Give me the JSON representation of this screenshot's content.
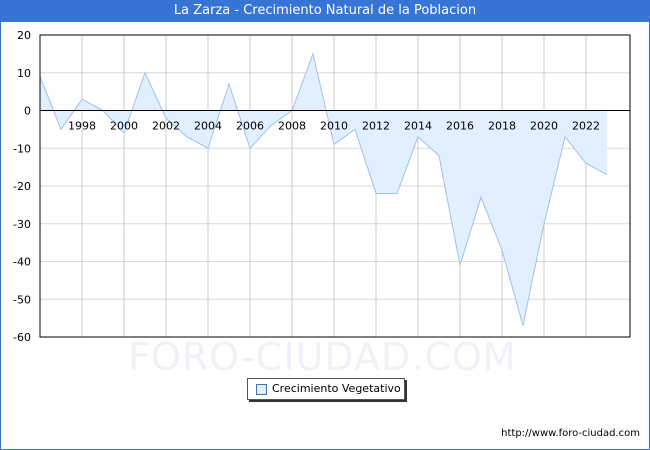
{
  "title": "La Zarza - Crecimiento Natural de la Poblacion",
  "legend": {
    "label": "Crecimiento Vegetativo",
    "swatch_color": "#ddeeff"
  },
  "watermark": "FORO-CIUDAD.COM",
  "footer": {
    "url": "http://www.foro-ciudad.com"
  },
  "colors": {
    "title_bg": "#3674d6",
    "line": "#a0c0ee",
    "fill": "#e1efff",
    "grid": "#d9d9d9"
  },
  "chart_data": {
    "type": "area",
    "title": "La Zarza - Crecimiento Natural de la Poblacion",
    "xlabel": "",
    "ylabel": "",
    "x": [
      1996,
      1997,
      1998,
      1999,
      2000,
      2001,
      2002,
      2003,
      2004,
      2005,
      2006,
      2007,
      2008,
      2009,
      2010,
      2011,
      2012,
      2013,
      2014,
      2015,
      2016,
      2017,
      2018,
      2019,
      2020,
      2021,
      2022,
      2023
    ],
    "series": [
      {
        "name": "Crecimiento Vegetativo",
        "values": [
          9,
          -5,
          3,
          0,
          -6,
          10,
          -2,
          -7,
          -10,
          7,
          -10,
          -4,
          0,
          15,
          -9,
          -5,
          -22,
          -22,
          -7,
          -12,
          -41,
          -23,
          -37,
          -57,
          -30,
          -7,
          -14,
          -17
        ]
      }
    ],
    "x_tick_labels": [
      "1998",
      "2000",
      "2002",
      "2004",
      "2006",
      "2008",
      "2010",
      "2012",
      "2014",
      "2016",
      "2018",
      "2020",
      "2022"
    ],
    "y_tick_labels": [
      "20",
      "10",
      "0",
      "-10",
      "-20",
      "-30",
      "-40",
      "-50",
      "-60"
    ],
    "ylim": [
      -60,
      20
    ],
    "grid": true,
    "legend_position": "bottom-center"
  }
}
